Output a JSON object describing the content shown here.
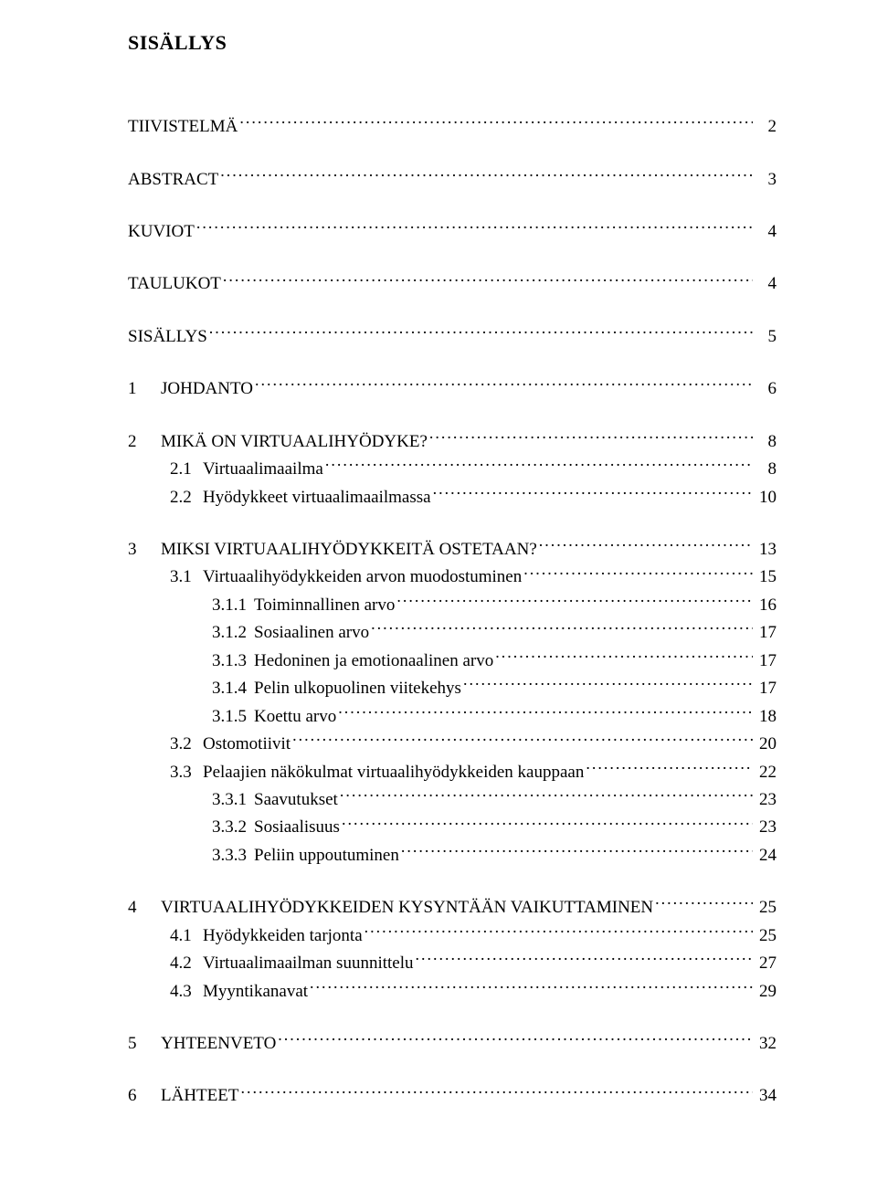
{
  "title": "SISÄLLYS",
  "entries": [
    {
      "level": 0,
      "num": "",
      "label": "TIIVISTELMÄ",
      "page": "2",
      "gap_after": "big"
    },
    {
      "level": 0,
      "num": "",
      "label": "ABSTRACT",
      "page": "3",
      "gap_after": "big"
    },
    {
      "level": 0,
      "num": "",
      "label": "KUVIOT",
      "page": "4",
      "gap_after": "big"
    },
    {
      "level": 0,
      "num": "",
      "label": "TAULUKOT",
      "page": "4",
      "gap_after": "big"
    },
    {
      "level": 0,
      "num": "",
      "label": "SISÄLLYS",
      "page": "5",
      "gap_after": "big"
    },
    {
      "level": 0,
      "num": "1",
      "label": "JOHDANTO",
      "page": "6",
      "gap_after": "big"
    },
    {
      "level": 0,
      "num": "2",
      "label": "MIKÄ ON VIRTUAALIHYÖDYKE?",
      "page": "8",
      "gap_after": "small"
    },
    {
      "level": 1,
      "num": "2.1",
      "label": "Virtuaalimaailma",
      "page": "8",
      "gap_after": "small"
    },
    {
      "level": 1,
      "num": "2.2",
      "label": "Hyödykkeet virtuaalimaailmassa",
      "page": "10",
      "gap_after": "big"
    },
    {
      "level": 0,
      "num": "3",
      "label": "MIKSI VIRTUAALIHYÖDYKKEITÄ OSTETAAN?",
      "page": "13",
      "gap_after": "small"
    },
    {
      "level": 1,
      "num": "3.1",
      "label": "Virtuaalihyödykkeiden arvon muodostuminen",
      "page": "15",
      "gap_after": "small"
    },
    {
      "level": 2,
      "num": "3.1.1",
      "label": "Toiminnallinen arvo",
      "page": "16",
      "gap_after": "small"
    },
    {
      "level": 2,
      "num": "3.1.2",
      "label": "Sosiaalinen arvo",
      "page": "17",
      "gap_after": "small"
    },
    {
      "level": 2,
      "num": "3.1.3",
      "label": "Hedoninen ja emotionaalinen arvo",
      "page": "17",
      "gap_after": "small"
    },
    {
      "level": 2,
      "num": "3.1.4",
      "label": "Pelin ulkopuolinen viitekehys",
      "page": "17",
      "gap_after": "small"
    },
    {
      "level": 2,
      "num": "3.1.5",
      "label": "Koettu arvo",
      "page": "18",
      "gap_after": "small"
    },
    {
      "level": 1,
      "num": "3.2",
      "label": "Ostomotiivit",
      "page": "20",
      "gap_after": "small"
    },
    {
      "level": 1,
      "num": "3.3",
      "label": "Pelaajien näkökulmat virtuaalihyödykkeiden kauppaan",
      "page": "22",
      "gap_after": "small"
    },
    {
      "level": 2,
      "num": "3.3.1",
      "label": "Saavutukset",
      "page": "23",
      "gap_after": "small"
    },
    {
      "level": 2,
      "num": "3.3.2",
      "label": "Sosiaalisuus",
      "page": "23",
      "gap_after": "small"
    },
    {
      "level": 2,
      "num": "3.3.3",
      "label": "Peliin uppoutuminen",
      "page": "24",
      "gap_after": "big"
    },
    {
      "level": 0,
      "num": "4",
      "label": "VIRTUAALIHYÖDYKKEIDEN KYSYNTÄÄN VAIKUTTAMINEN",
      "page": "25",
      "gap_after": "small"
    },
    {
      "level": 1,
      "num": "4.1",
      "label": "Hyödykkeiden tarjonta",
      "page": "25",
      "gap_after": "small"
    },
    {
      "level": 1,
      "num": "4.2",
      "label": "Virtuaalimaailman suunnittelu",
      "page": "27",
      "gap_after": "small"
    },
    {
      "level": 1,
      "num": "4.3",
      "label": "Myyntikanavat",
      "page": "29",
      "gap_after": "big"
    },
    {
      "level": 0,
      "num": "5",
      "label": "YHTEENVETO",
      "page": "32",
      "gap_after": "big"
    },
    {
      "level": 0,
      "num": "6",
      "label": "LÄHTEET",
      "page": "34",
      "gap_after": "small"
    }
  ]
}
